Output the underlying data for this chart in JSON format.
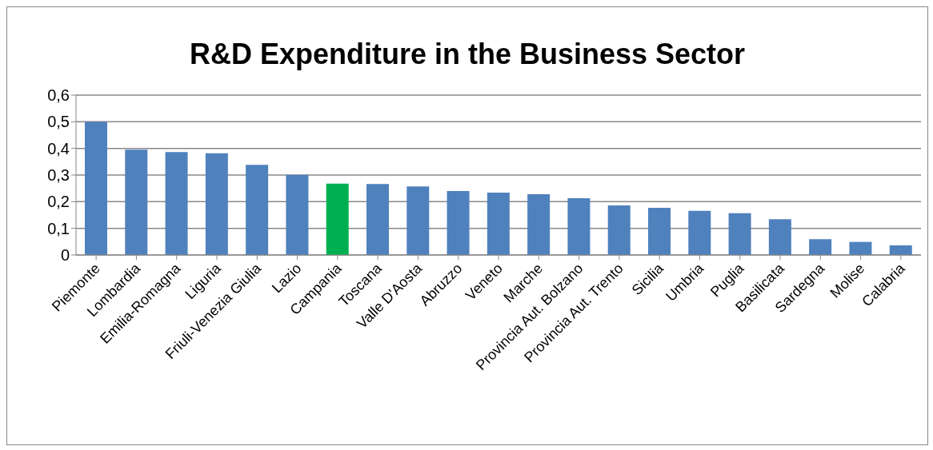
{
  "chart_data": {
    "type": "bar",
    "title": "R&D Expenditure in the Business Sector",
    "categories": [
      "Piemonte",
      "Lombardia",
      "Emilia-Romagna",
      "Liguria",
      "Friuli-Venezia Giulia",
      "Lazio",
      "Campania",
      "Toscana",
      "Valle D'Aosta",
      "Abruzzo",
      "Veneto",
      "Marche",
      "Provincia Aut. Bolzano",
      "Provincia Aut. Trento",
      "Sicilia",
      "Umbria",
      "Puglia",
      "Basilicata",
      "Sardegna",
      "Molise",
      "Calabria"
    ],
    "values": [
      0.5,
      0.395,
      0.386,
      0.382,
      0.338,
      0.301,
      0.268,
      0.266,
      0.257,
      0.24,
      0.234,
      0.228,
      0.213,
      0.186,
      0.177,
      0.166,
      0.157,
      0.134,
      0.059,
      0.049,
      0.036
    ],
    "colors": [
      "#4f81bd",
      "#4f81bd",
      "#4f81bd",
      "#4f81bd",
      "#4f81bd",
      "#4f81bd",
      "#00b050",
      "#4f81bd",
      "#4f81bd",
      "#4f81bd",
      "#4f81bd",
      "#4f81bd",
      "#4f81bd",
      "#4f81bd",
      "#4f81bd",
      "#4f81bd",
      "#4f81bd",
      "#4f81bd",
      "#4f81bd",
      "#4f81bd",
      "#4f81bd"
    ],
    "ylim": [
      0,
      0.6
    ],
    "yticks": [
      {
        "value": 0,
        "label": "0"
      },
      {
        "value": 0.1,
        "label": "0,1"
      },
      {
        "value": 0.2,
        "label": "0,2"
      },
      {
        "value": 0.3,
        "label": "0,3"
      },
      {
        "value": 0.4,
        "label": "0,4"
      },
      {
        "value": 0.5,
        "label": "0,5"
      },
      {
        "value": 0.6,
        "label": "0,6"
      }
    ],
    "grid": "y"
  }
}
